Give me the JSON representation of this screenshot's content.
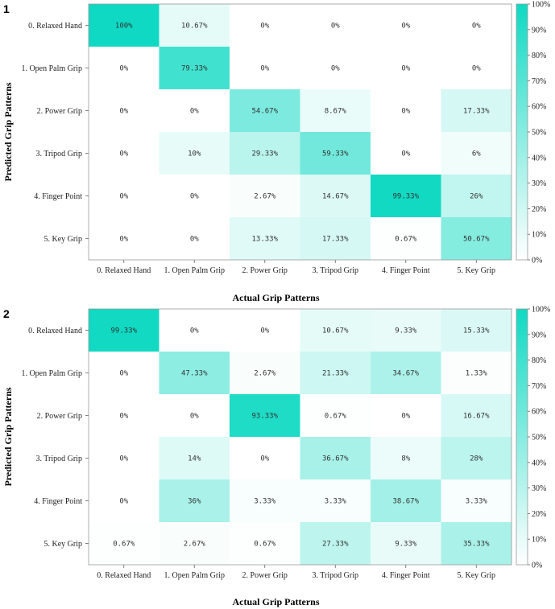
{
  "chart_data": [
    {
      "type": "heatmap",
      "panel_label": "1",
      "xlabel": "Actual Grip Patterns",
      "ylabel": "Predicted Grip Patterns",
      "x_categories": [
        "0. Relaxed Hand",
        "1. Open Palm Grip",
        "2. Power Grip",
        "3. Tripod Grip",
        "4. Finger Point",
        "5. Key Grip"
      ],
      "y_categories": [
        "0. Relaxed Hand",
        "1. Open Palm Grip",
        "2. Power Grip",
        "3. Tripod Grip",
        "4. Finger Point",
        "5. Key Grip"
      ],
      "values": [
        [
          100,
          10.67,
          0,
          0,
          0,
          0
        ],
        [
          0,
          79.33,
          0,
          0,
          0,
          0
        ],
        [
          0,
          0,
          54.67,
          8.67,
          0,
          17.33
        ],
        [
          0,
          10,
          29.33,
          59.33,
          0,
          6
        ],
        [
          0,
          0,
          2.67,
          14.67,
          99.33,
          26
        ],
        [
          0,
          0,
          13.33,
          17.33,
          0.67,
          50.67
        ]
      ],
      "labels": [
        [
          "100%",
          "10.67%",
          "0%",
          "0%",
          "0%",
          "0%"
        ],
        [
          "0%",
          "79.33%",
          "0%",
          "0%",
          "0%",
          "0%"
        ],
        [
          "0%",
          "0%",
          "54.67%",
          "8.67%",
          "0%",
          "17.33%"
        ],
        [
          "0%",
          "10%",
          "29.33%",
          "59.33%",
          "0%",
          "6%"
        ],
        [
          "0%",
          "0%",
          "2.67%",
          "14.67%",
          "99.33%",
          "26%"
        ],
        [
          "0%",
          "0%",
          "13.33%",
          "17.33%",
          "0.67%",
          "50.67%"
        ]
      ],
      "colorbar_ticks": [
        "0%",
        "10%",
        "20%",
        "30%",
        "40%",
        "50%",
        "60%",
        "70%",
        "80%",
        "90%",
        "100%"
      ],
      "color_range": [
        0,
        100
      ]
    },
    {
      "type": "heatmap",
      "panel_label": "2",
      "xlabel": "Actual Grip Patterns",
      "ylabel": "Predicted Grip Patterns",
      "x_categories": [
        "0. Relaxed Hand",
        "1. Open Palm Grip",
        "2. Power Grip",
        "3. Tripod Grip",
        "4. Finger Point",
        "5. Key Grip"
      ],
      "y_categories": [
        "0. Relaxed Hand",
        "1. Open Palm Grip",
        "2. Power Grip",
        "3. Tripod Grip",
        "4. Finger Point",
        "5. Key Grip"
      ],
      "values": [
        [
          99.33,
          0,
          0,
          10.67,
          9.33,
          15.33
        ],
        [
          0,
          47.33,
          2.67,
          21.33,
          34.67,
          1.33
        ],
        [
          0,
          0,
          93.33,
          0.67,
          0,
          16.67
        ],
        [
          0,
          14,
          0,
          36.67,
          8,
          28
        ],
        [
          0,
          36,
          3.33,
          3.33,
          38.67,
          3.33
        ],
        [
          0.67,
          2.67,
          0.67,
          27.33,
          9.33,
          35.33
        ]
      ],
      "labels": [
        [
          "99.33%",
          "0%",
          "0%",
          "10.67%",
          "9.33%",
          "15.33%"
        ],
        [
          "0%",
          "47.33%",
          "2.67%",
          "21.33%",
          "34.67%",
          "1.33%"
        ],
        [
          "0%",
          "0%",
          "93.33%",
          "0.67%",
          "0%",
          "16.67%"
        ],
        [
          "0%",
          "14%",
          "0%",
          "36.67%",
          "8%",
          "28%"
        ],
        [
          "0%",
          "36%",
          "3.33%",
          "3.33%",
          "38.67%",
          "3.33%"
        ],
        [
          "0.67%",
          "2.67%",
          "0.67%",
          "27.33%",
          "9.33%",
          "35.33%"
        ]
      ],
      "colorbar_ticks": [
        "0%",
        "10%",
        "20%",
        "30%",
        "40%",
        "50%",
        "60%",
        "70%",
        "80%",
        "90%",
        "100%"
      ],
      "color_range": [
        0,
        100
      ]
    }
  ],
  "colors": {
    "low": "#ffffff",
    "high": "#0fd9c2",
    "text": "#333333"
  }
}
